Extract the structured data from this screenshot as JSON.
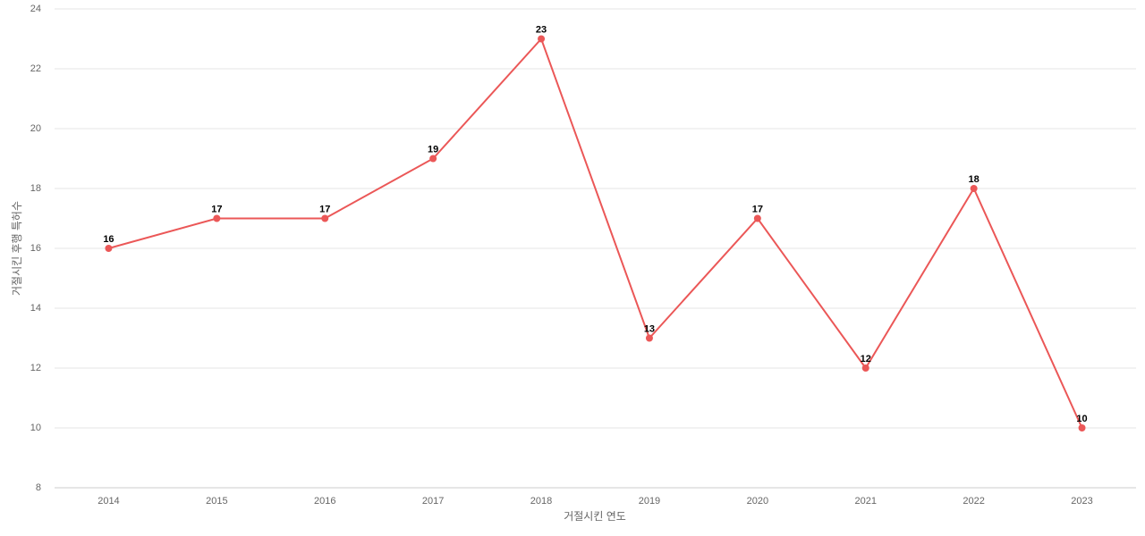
{
  "chart_data": {
    "type": "line",
    "x_label": "거절시킨 연도",
    "y_label": "거절시킨 후행 특허수",
    "categories": [
      "2014",
      "2015",
      "2016",
      "2017",
      "2018",
      "2019",
      "2020",
      "2021",
      "2022",
      "2023"
    ],
    "series": [
      {
        "name": "후행 특허수",
        "color": "#eb5757",
        "values": [
          16,
          17,
          17,
          19,
          23,
          13,
          17,
          12,
          18,
          10
        ]
      }
    ],
    "ylim": [
      8,
      24
    ],
    "yticks": [
      8,
      10,
      12,
      14,
      16,
      18,
      20,
      22,
      24
    ],
    "grid": true
  }
}
